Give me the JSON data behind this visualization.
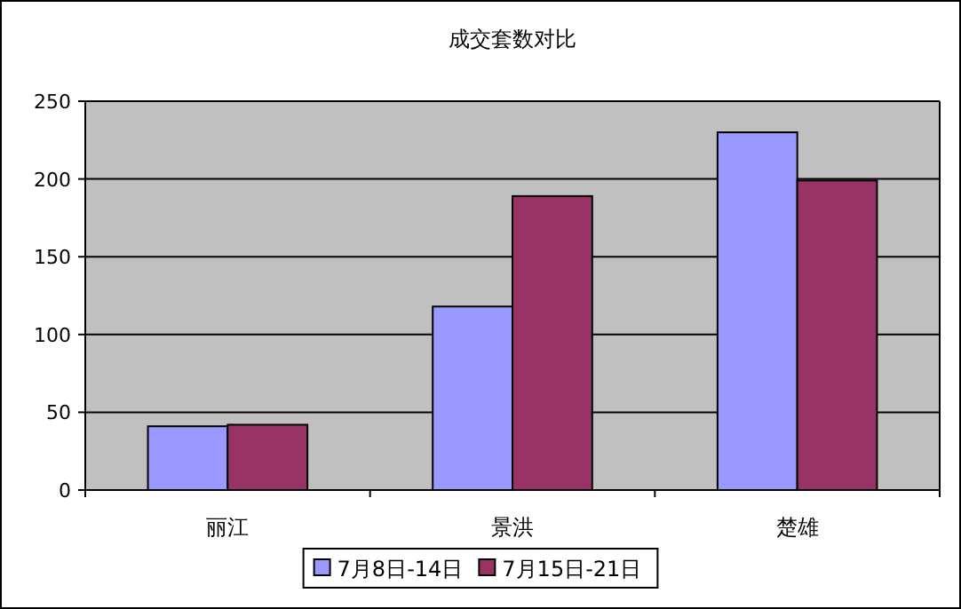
{
  "chart_data": {
    "type": "bar",
    "title": "成交套数对比",
    "categories": [
      "丽江",
      "景洪",
      "楚雄"
    ],
    "series": [
      {
        "name": "7月8日-14日",
        "color": "#9999ff",
        "values": [
          41,
          118,
          230
        ]
      },
      {
        "name": "7月15日-21日",
        "color": "#993366",
        "values": [
          42,
          189,
          199
        ]
      }
    ],
    "ylim": [
      0,
      250
    ],
    "yticks": [
      0,
      50,
      100,
      150,
      200,
      250
    ],
    "grid": "y",
    "legend": "bottom"
  }
}
